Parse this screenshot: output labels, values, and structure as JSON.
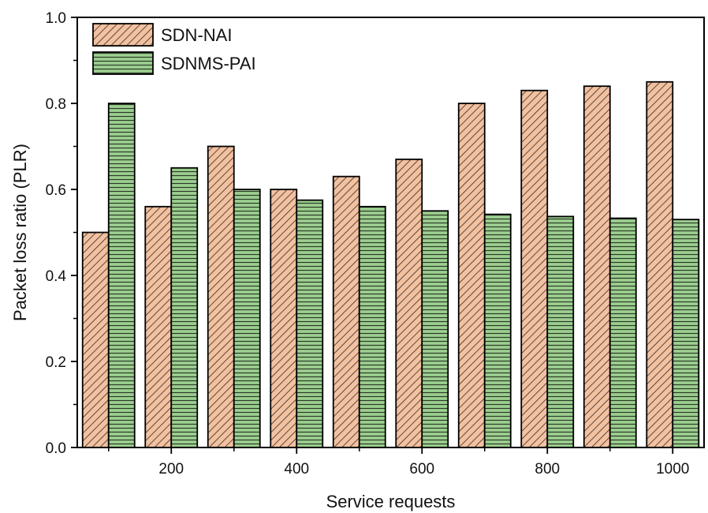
{
  "chart_data": {
    "type": "bar",
    "xlabel": "Service requests",
    "ylabel": "Packet loss ratio (PLR)",
    "ylim": [
      0.0,
      1.0
    ],
    "yticks": [
      "0.0",
      "0.2",
      "0.4",
      "0.6",
      "0.8",
      "1.0"
    ],
    "x": [
      100,
      200,
      300,
      400,
      500,
      600,
      700,
      800,
      900,
      1000
    ],
    "xticks": [
      "200",
      "400",
      "600",
      "800",
      "1000"
    ],
    "legend_position": "top-left",
    "grid": false,
    "series": [
      {
        "name": "SDN-NAI",
        "color": "#f2c1a0",
        "hatch": "diagonal",
        "values": [
          0.5,
          0.56,
          0.7,
          0.6,
          0.63,
          0.67,
          0.8,
          0.83,
          0.84,
          0.85
        ]
      },
      {
        "name": "SDNMS-PAI",
        "color": "#9ccf8f",
        "hatch": "horizontal",
        "values": [
          0.8,
          0.65,
          0.6,
          0.575,
          0.56,
          0.55,
          0.542,
          0.537,
          0.533,
          0.53
        ]
      }
    ]
  }
}
